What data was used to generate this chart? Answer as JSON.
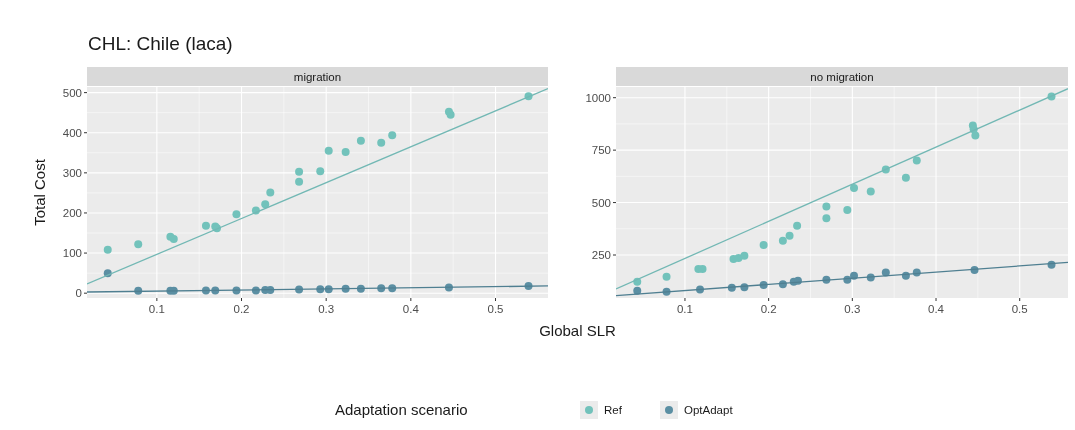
{
  "chart_data": [
    {
      "type": "scatter",
      "title": "CHL: Chile (laca)",
      "subtitle": "migration",
      "xlabel": "Global SLR",
      "ylabel": "Total Cost",
      "legend_title": "Adaptation scenario",
      "legend": "bottom",
      "grid": true,
      "marker": "circle",
      "xlim": [
        0.0175,
        0.562
      ],
      "ylim": [
        -12,
        514
      ],
      "xticks": [
        0.1,
        0.2,
        0.3,
        0.4,
        0.5
      ],
      "yticks": [
        0,
        100,
        200,
        300,
        400,
        500
      ],
      "series": [
        {
          "name": "Ref",
          "color": "#72c2bb",
          "x": [
            0.042,
            0.078,
            0.116,
            0.12,
            0.158,
            0.169,
            0.171,
            0.194,
            0.217,
            0.228,
            0.234,
            0.268,
            0.268,
            0.293,
            0.303,
            0.323,
            0.341,
            0.365,
            0.378,
            0.445,
            0.447,
            0.539
          ],
          "values": [
            108,
            122,
            141,
            135,
            168,
            166,
            162,
            197,
            206,
            222,
            251,
            303,
            278,
            304,
            355,
            352,
            380,
            375,
            394,
            452,
            445,
            491
          ]
        },
        {
          "name": "OptAdapt",
          "color": "#5b8fa3",
          "x": [
            0.042,
            0.078,
            0.116,
            0.12,
            0.158,
            0.169,
            0.194,
            0.217,
            0.228,
            0.234,
            0.268,
            0.293,
            0.303,
            0.323,
            0.341,
            0.365,
            0.378,
            0.445,
            0.539
          ],
          "values": [
            50,
            6,
            6,
            6,
            7,
            7,
            7,
            7,
            8,
            8,
            9,
            10,
            10,
            11,
            11,
            12,
            12,
            14,
            18
          ]
        },
        {
          "type": "line",
          "color": "#72b8b4",
          "marker": "none",
          "x": [
            0.0175,
            0.562
          ],
          "values": [
            23,
            510
          ]
        },
        {
          "type": "line",
          "color": "#4f7f91",
          "marker": "none",
          "x": [
            0.0175,
            0.562
          ],
          "values": [
            3,
            18
          ]
        }
      ]
    },
    {
      "type": "scatter",
      "subtitle": "no migration",
      "grid": true,
      "marker": "circle",
      "xlim": [
        0.0176,
        0.5577
      ],
      "ylim": [
        45,
        1051
      ],
      "xticks": [
        0.1,
        0.2,
        0.3,
        0.4,
        0.5
      ],
      "yticks": [
        250,
        500,
        750,
        1000
      ],
      "series": [
        {
          "color": "#72c2bb",
          "x": [
            0.043,
            0.078,
            0.116,
            0.121,
            0.158,
            0.164,
            0.171,
            0.194,
            0.217,
            0.225,
            0.234,
            0.269,
            0.269,
            0.294,
            0.302,
            0.322,
            0.34,
            0.364,
            0.377,
            0.444,
            0.445,
            0.447,
            0.538
          ],
          "values": [
            123,
            146,
            183,
            183,
            231,
            236,
            247,
            298,
            318,
            342,
            390,
            481,
            425,
            465,
            570,
            553,
            658,
            618,
            701,
            868,
            849,
            820,
            1006
          ]
        },
        {
          "color": "#5b8fa3",
          "x": [
            0.043,
            0.078,
            0.118,
            0.156,
            0.171,
            0.194,
            0.217,
            0.23,
            0.235,
            0.269,
            0.294,
            0.302,
            0.322,
            0.34,
            0.364,
            0.377,
            0.446,
            0.538
          ],
          "values": [
            80,
            75,
            86,
            94,
            96,
            107,
            111,
            123,
            127,
            132,
            132,
            151,
            143,
            166,
            151,
            166,
            178,
            204
          ]
        },
        {
          "type": "line",
          "color": "#72b8b4",
          "marker": "none",
          "x": [
            0.0176,
            0.5577
          ],
          "values": [
            88,
            1043
          ]
        },
        {
          "type": "line",
          "color": "#4f7f91",
          "marker": "none",
          "x": [
            0.0176,
            0.5577
          ],
          "values": [
            56,
            215
          ]
        }
      ]
    }
  ]
}
